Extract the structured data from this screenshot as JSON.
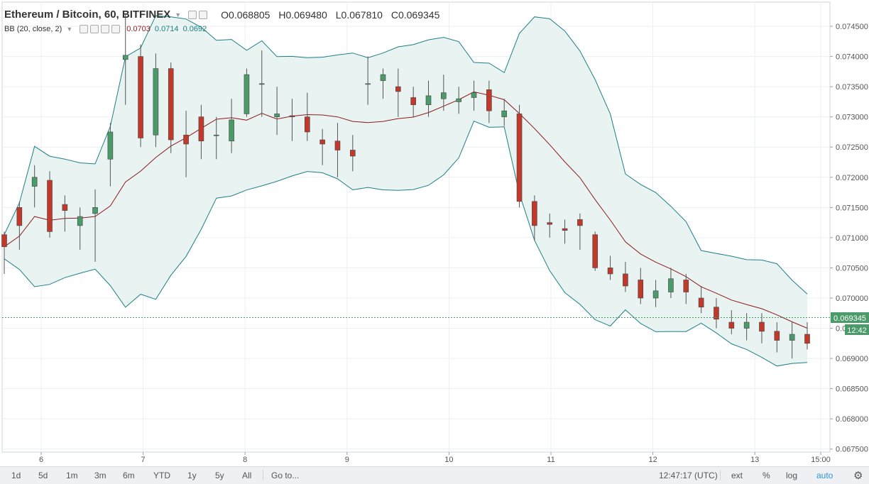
{
  "legend": {
    "symbol": "Ethereum / Bitcoin, 60, BITFINEX",
    "open_label": "O",
    "open": "0.068805",
    "high_label": "H",
    "high": "0.069480",
    "low_label": "L",
    "low": "0.067810",
    "close_label": "C",
    "close": "0.069345"
  },
  "indicator": {
    "name": "BB (20, close, 2)",
    "values": [
      "0.0703",
      "0.0714",
      "0.0692"
    ],
    "colors": [
      "#8e1b1b",
      "#1f7f86",
      "#1f7f86"
    ]
  },
  "price_tag": {
    "value": "0.069345",
    "time": "12:42",
    "color": "#4a9a6a"
  },
  "bottom_bar": {
    "ranges": [
      "1d",
      "5d",
      "1m",
      "3m",
      "6m",
      "YTD",
      "1y",
      "5y",
      "All"
    ],
    "goto": "Go to...",
    "clock": "12:47:17 (UTC)",
    "options": [
      "ext",
      "%",
      "log",
      "auto"
    ],
    "settings_icon": "gear-icon"
  },
  "chart_data": {
    "type": "candlestick",
    "y_axis_ticks": [
      "0.074500",
      "0.074000",
      "0.073500",
      "0.073000",
      "0.072500",
      "0.072000",
      "0.071500",
      "0.071000",
      "0.070500",
      "0.070000",
      "0.069500",
      "0.069000",
      "0.068500",
      "0.068000",
      "0.067500"
    ],
    "x_axis_ticks": [
      "6",
      "7",
      "8",
      "9",
      "10",
      "11",
      "12",
      "13",
      "15:00"
    ],
    "ylim": [
      0.06745,
      0.0749
    ],
    "grid": true,
    "colors": {
      "up": "#4a9a6a",
      "down": "#c0392b",
      "upper_lower_band": "#1f7f86",
      "basis": "#8e1b1b",
      "band_fill": "#e8f3f2"
    },
    "candles": [
      [
        0.07105,
        0.07085,
        0.0711,
        0.0704
      ],
      [
        0.0715,
        0.0712,
        0.0716,
        0.0708
      ],
      [
        0.07185,
        0.072,
        0.0722,
        0.0715
      ],
      [
        0.07195,
        0.0711,
        0.0721,
        0.071
      ],
      [
        0.07155,
        0.07145,
        0.0717,
        0.0711
      ],
      [
        0.0712,
        0.07135,
        0.0715,
        0.0708
      ],
      [
        0.0714,
        0.0715,
        0.0718,
        0.0706
      ],
      [
        0.0723,
        0.07275,
        0.0729,
        0.07185
      ],
      [
        0.07395,
        0.07402,
        0.0747,
        0.0732
      ],
      [
        0.074,
        0.07265,
        0.0742,
        0.0725
      ],
      [
        0.0727,
        0.0738,
        0.07405,
        0.0725
      ],
      [
        0.0738,
        0.07262,
        0.0739,
        0.0724
      ],
      [
        0.0727,
        0.07255,
        0.0731,
        0.072
      ],
      [
        0.073,
        0.0726,
        0.0732,
        0.0723
      ],
      [
        0.0727,
        0.0727,
        0.073,
        0.0723
      ],
      [
        0.0726,
        0.07295,
        0.0733,
        0.0724
      ],
      [
        0.07305,
        0.0737,
        0.0738,
        0.073
      ],
      [
        0.07355,
        0.07355,
        0.0741,
        0.073
      ],
      [
        0.073,
        0.07305,
        0.0735,
        0.0727
      ],
      [
        0.07302,
        0.073,
        0.0733,
        0.0726
      ],
      [
        0.073,
        0.07275,
        0.0734,
        0.0726
      ],
      [
        0.07262,
        0.07255,
        0.0728,
        0.0722
      ],
      [
        0.0726,
        0.07245,
        0.0729,
        0.072
      ],
      [
        0.07245,
        0.07235,
        0.0727,
        0.0721
      ],
      [
        0.07355,
        0.07355,
        0.074,
        0.0732
      ],
      [
        0.0736,
        0.0737,
        0.0738,
        0.0733
      ],
      [
        0.0735,
        0.07342,
        0.0738,
        0.073
      ],
      [
        0.07332,
        0.0732,
        0.0735,
        0.073
      ],
      [
        0.0732,
        0.07335,
        0.0736,
        0.073
      ],
      [
        0.0733,
        0.0734,
        0.0737,
        0.0731
      ],
      [
        0.07325,
        0.0733,
        0.0735,
        0.07305
      ],
      [
        0.07332,
        0.0734,
        0.0736,
        0.0731
      ],
      [
        0.07345,
        0.0731,
        0.0736,
        0.0729
      ],
      [
        0.073,
        0.0731,
        0.0733,
        0.07285
      ],
      [
        0.07305,
        0.0716,
        0.0732,
        0.0715
      ],
      [
        0.0716,
        0.0712,
        0.0717,
        0.07095
      ],
      [
        0.07125,
        0.07122,
        0.0714,
        0.071
      ],
      [
        0.07115,
        0.07112,
        0.0713,
        0.0709
      ],
      [
        0.0713,
        0.0712,
        0.0714,
        0.0708
      ],
      [
        0.07105,
        0.0705,
        0.0711,
        0.07045
      ],
      [
        0.0705,
        0.0704,
        0.0707,
        0.0703
      ],
      [
        0.0704,
        0.0702,
        0.0706,
        0.0701
      ],
      [
        0.0703,
        0.07,
        0.0705,
        0.0699
      ],
      [
        0.07,
        0.07012,
        0.0703,
        0.06985
      ],
      [
        0.0701,
        0.07032,
        0.0705,
        0.07
      ],
      [
        0.0703,
        0.0701,
        0.0704,
        0.0699
      ],
      [
        0.07,
        0.06985,
        0.0702,
        0.06975
      ],
      [
        0.06985,
        0.06965,
        0.07,
        0.0695
      ],
      [
        0.0696,
        0.0695,
        0.0698,
        0.0694
      ],
      [
        0.0695,
        0.0696,
        0.06975,
        0.0693
      ],
      [
        0.0696,
        0.06945,
        0.06975,
        0.06925
      ],
      [
        0.06945,
        0.0693,
        0.0696,
        0.0691
      ],
      [
        0.0693,
        0.0694,
        0.0696,
        0.069
      ],
      [
        0.0694,
        0.06925,
        0.0696,
        0.06915
      ]
    ]
  }
}
